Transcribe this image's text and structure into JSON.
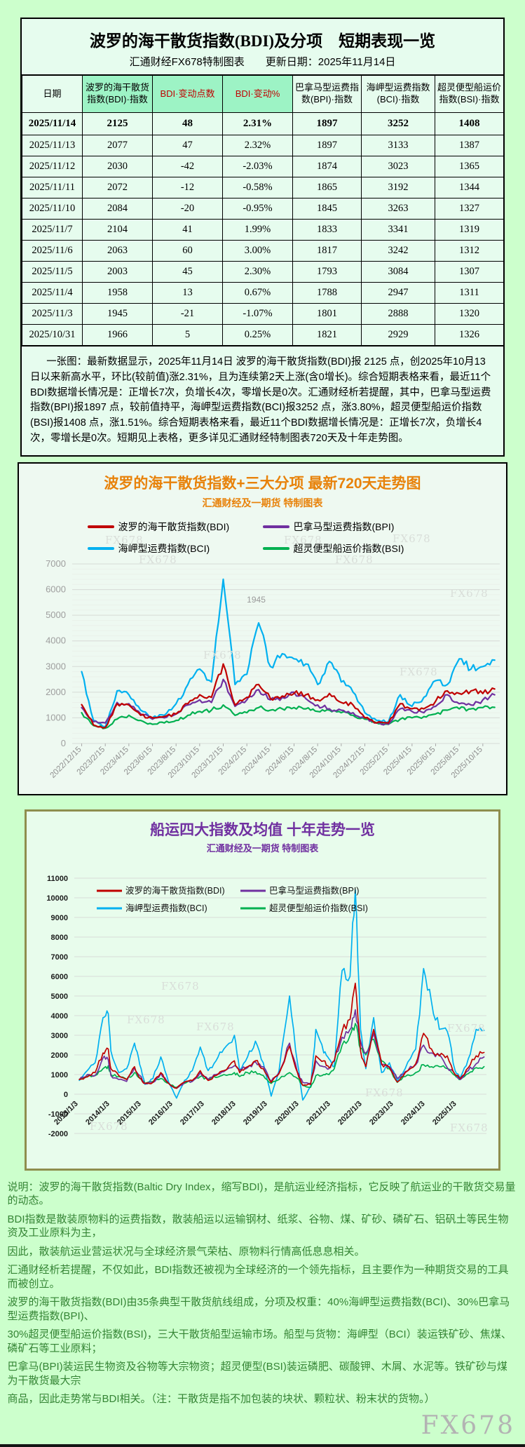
{
  "page": {
    "watermark": "FX678"
  },
  "colors": {
    "bdi_red": "#c00000",
    "bpi_purple": "#7030a0",
    "bci_blue": "#00b0f0",
    "bsi_green": "#00b050",
    "title_orange": "#e8820a",
    "title_purple": "#7030a0",
    "header_mint": "#9df3c5",
    "note_green": "#348434",
    "page_bg": "#ccffcc"
  },
  "table_panel": {
    "title": "波罗的海干散货指数(BDI)及分项　短期表现一览",
    "source": "汇通财经FX678特制图表",
    "updated": "更新日期：2025年11月14日",
    "columns": [
      {
        "label": "日期",
        "hl": false,
        "red": false
      },
      {
        "label": "波罗的海干散货指数(BDI)·指数",
        "hl": true,
        "red": false
      },
      {
        "label": "BDI·变动点数",
        "hl": true,
        "red": true
      },
      {
        "label": "BDI·变动%",
        "hl": true,
        "red": true
      },
      {
        "label": "巴拿马型运费指数(BPI)·指数",
        "hl": false,
        "red": false
      },
      {
        "label": "海岬型运费指数(BCI)·指数",
        "hl": false,
        "red": false
      },
      {
        "label": "超灵便型船运价指数(BSI)·指数",
        "hl": false,
        "red": false
      }
    ],
    "rows": [
      [
        "2025/11/14",
        "2125",
        "48",
        "2.31%",
        "1897",
        "3252",
        "1408"
      ],
      [
        "2025/11/13",
        "2077",
        "47",
        "2.32%",
        "1897",
        "3133",
        "1387"
      ],
      [
        "2025/11/12",
        "2030",
        "-42",
        "-2.03%",
        "1874",
        "3023",
        "1365"
      ],
      [
        "2025/11/11",
        "2072",
        "-12",
        "-0.58%",
        "1865",
        "3192",
        "1344"
      ],
      [
        "2025/11/10",
        "2084",
        "-20",
        "-0.95%",
        "1845",
        "3263",
        "1327"
      ],
      [
        "2025/11/7",
        "2104",
        "41",
        "1.99%",
        "1833",
        "3341",
        "1319"
      ],
      [
        "2025/11/6",
        "2063",
        "60",
        "3.00%",
        "1817",
        "3242",
        "1312"
      ],
      [
        "2025/11/5",
        "2003",
        "45",
        "2.30%",
        "1793",
        "3084",
        "1307"
      ],
      [
        "2025/11/4",
        "1958",
        "13",
        "0.67%",
        "1788",
        "2947",
        "1311"
      ],
      [
        "2025/11/3",
        "1945",
        "-21",
        "-1.07%",
        "1801",
        "2888",
        "1320"
      ],
      [
        "2025/10/31",
        "1966",
        "5",
        "0.25%",
        "1821",
        "2929",
        "1326"
      ]
    ],
    "note": "一张图：最新数据显示，2025年11月14日 波罗的海干散货指数(BDI)报 2125 点，创2025年10月13日以来新高水平，环比(较前值)涨2.31%，且为连续第2天上涨(含0增长)。综合短期表格来看，最近11个BDI数据增长情况是：正增长7次，负增长4次，零增长是0次。汇通财经析若提醒，其中，巴拿马型运费指数(BPI)报1897 点，较前值持平，海岬型运费指数(BCI)报3252 点，涨3.80%，超灵便型船运价指数(BSI)报1408 点，涨1.51%。综合短期表格来看，最近11个BDI数据增长情况是：正增长7次，负增长4次，零增长是0次。短期见上表格，更多详见汇通财经特制图表720天及十年走势图。"
  },
  "chart_data": [
    {
      "type": "line",
      "title": "波罗的海干散货指数+三大分项  最新720天走势图",
      "subtitle": "汇通财经及一期货 特制图表",
      "legend_position": "top",
      "grid": true,
      "xlim": [
        2022.89,
        2025.91
      ],
      "ylim": [
        0,
        7000
      ],
      "ytick_step": 1000,
      "xticks": [
        "2022/12/15",
        "2023/2/15",
        "2023/4/15",
        "2023/6/15",
        "2023/8/15",
        "2023/10/15",
        "2023/12/15",
        "2024/2/15",
        "2024/4/15",
        "2024/6/15",
        "2024/8/15",
        "2024/10/15",
        "2024/12/15",
        "2025/2/15",
        "2025/4/15",
        "2025/6/15",
        "2025/8/15",
        "2025/10/15"
      ],
      "x": [
        "2022/12",
        "2023/1",
        "2023/2",
        "2023/3",
        "2023/4",
        "2023/5",
        "2023/6",
        "2023/7",
        "2023/8",
        "2023/9",
        "2023/10",
        "2023/11",
        "2023/12",
        "2024/1",
        "2024/2",
        "2024/3",
        "2024/4",
        "2024/5",
        "2024/6",
        "2024/7",
        "2024/8",
        "2024/9",
        "2024/10",
        "2024/11",
        "2024/12",
        "2025/1",
        "2025/2",
        "2025/3",
        "2025/4",
        "2025/5",
        "2025/6",
        "2025/7",
        "2025/8",
        "2025/9",
        "2025/10",
        "2025/11"
      ],
      "series": [
        {
          "name": "波罗的海干散货指数(BDI)",
          "short": "bdi",
          "color": "#c00000",
          "values": [
            1515,
            720,
            620,
            1550,
            1500,
            1100,
            1000,
            1050,
            1150,
            1550,
            1900,
            1800,
            3100,
            1500,
            1800,
            2300,
            1750,
            1850,
            1950,
            1900,
            1700,
            1950,
            1600,
            1500,
            1000,
            800,
            800,
            1550,
            1350,
            1350,
            1650,
            2050,
            1950,
            2050,
            1950,
            2125
          ]
        },
        {
          "name": "巴拿马型运费指数(BPI)",
          "short": "bpi",
          "color": "#7030a0",
          "values": [
            1400,
            850,
            800,
            1600,
            1550,
            1150,
            950,
            1000,
            1150,
            1500,
            1700,
            1600,
            2500,
            1450,
            1700,
            2100,
            1700,
            1800,
            2000,
            1750,
            1500,
            1350,
            1300,
            1200,
            1000,
            800,
            750,
            1350,
            1250,
            1200,
            1450,
            1900,
            1550,
            1500,
            1700,
            1897
          ]
        },
        {
          "name": "海岬型运费指数(BCI)",
          "short": "bci",
          "color": "#00b0f0",
          "values": [
            2800,
            900,
            650,
            2050,
            1900,
            1300,
            1000,
            1100,
            1550,
            2300,
            2900,
            2400,
            6400,
            2300,
            2700,
            4700,
            3000,
            3500,
            3300,
            3100,
            2300,
            3200,
            2400,
            2000,
            1200,
            900,
            850,
            1900,
            1450,
            1800,
            2450,
            2300,
            3300,
            2900,
            3000,
            3250
          ]
        },
        {
          "name": "超灵便型船运价指数(BSI)",
          "short": "bsi",
          "color": "#00b050",
          "values": [
            1200,
            700,
            600,
            950,
            1100,
            900,
            750,
            800,
            900,
            1100,
            1250,
            1300,
            1500,
            1100,
            1200,
            1400,
            1300,
            1350,
            1400,
            1350,
            1250,
            1300,
            1200,
            1100,
            950,
            800,
            750,
            950,
            1000,
            1050,
            1150,
            1300,
            1350,
            1350,
            1400,
            1408
          ]
        }
      ],
      "draw_order": [
        2,
        3,
        1,
        0
      ],
      "annotations": [
        {
          "text": "1945",
          "x": "2024/2",
          "y": 5500
        }
      ]
    },
    {
      "type": "line",
      "title": "船运四大指数及均值 十年走势一览",
      "subtitle": "汇通财经及一期货 特制图表",
      "legend_position": "inside-top",
      "grid": true,
      "xlim": [
        2012.88,
        2025.95
      ],
      "ylim": [
        -2000,
        11000
      ],
      "ytick_step": 1000,
      "xticks": [
        "2013/1/3",
        "2014/1/3",
        "2015/1/3",
        "2016/1/3",
        "2017/1/3",
        "2018/1/3",
        "2019/1/3",
        "2020/1/3",
        "2021/1/3",
        "2022/1/3",
        "2023/1/3",
        "2024/1/3",
        "2025/1/3"
      ],
      "x": [
        "2013/1",
        "2013/4",
        "2013/7",
        "2013/10",
        "2013/12",
        "2014/1",
        "2014/4",
        "2014/7",
        "2014/10",
        "2014/12",
        "2015/2",
        "2015/5",
        "2015/8",
        "2015/11",
        "2016/2",
        "2016/5",
        "2016/8",
        "2016/11",
        "2017/2",
        "2017/5",
        "2017/8",
        "2017/12",
        "2018/2",
        "2018/5",
        "2018/8",
        "2018/11",
        "2019/2",
        "2019/5",
        "2019/9",
        "2019/12",
        "2020/2",
        "2020/5",
        "2020/7",
        "2020/10",
        "2020/12",
        "2021/2",
        "2021/5",
        "2021/8",
        "2021/10",
        "2021/12",
        "2022/2",
        "2022/5",
        "2022/8",
        "2022/11",
        "2023/2",
        "2023/5",
        "2023/9",
        "2023/12",
        "2024/3",
        "2024/6",
        "2024/9",
        "2024/12",
        "2025/2",
        "2025/5",
        "2025/8",
        "2025/11"
      ],
      "series": [
        {
          "name": "波罗的海干散货指数(BDI)",
          "short": "bdi",
          "color": "#c00000",
          "values": [
            750,
            880,
            1100,
            2100,
            2300,
            1300,
            950,
            750,
            1400,
            800,
            550,
            600,
            1100,
            550,
            300,
            620,
            700,
            1200,
            700,
            950,
            1200,
            1700,
            1100,
            1400,
            1700,
            1300,
            600,
            1050,
            2450,
            1100,
            450,
            500,
            1950,
            1700,
            1350,
            1700,
            3200,
            3800,
            5650,
            2200,
            1400,
            3300,
            1550,
            1350,
            620,
            1100,
            1550,
            3100,
            2300,
            1950,
            1950,
            1000,
            800,
            1350,
            1950,
            2125
          ]
        },
        {
          "name": "巴拿马型运费指数(BPI)",
          "short": "bpi",
          "color": "#7030a0",
          "values": [
            750,
            1000,
            950,
            1850,
            1750,
            950,
            750,
            650,
            1350,
            950,
            550,
            600,
            1050,
            550,
            300,
            600,
            650,
            1100,
            750,
            1000,
            1150,
            1450,
            1250,
            1350,
            1650,
            1400,
            650,
            1100,
            2600,
            1100,
            600,
            550,
            1700,
            1400,
            1300,
            1700,
            2900,
            3300,
            4300,
            2700,
            2100,
            3100,
            1500,
            1400,
            800,
            1150,
            1500,
            2500,
            2100,
            2000,
            1350,
            1000,
            750,
            1200,
            1550,
            1897
          ]
        },
        {
          "name": "海岬型运费指数(BCI)",
          "short": "bci",
          "color": "#00b0f0",
          "values": [
            700,
            1200,
            1600,
            3900,
            4100,
            2200,
            1100,
            1300,
            2600,
            1500,
            500,
            800,
            1900,
            600,
            -200,
            700,
            1200,
            2400,
            1200,
            1700,
            2300,
            3000,
            1200,
            1900,
            2700,
            1600,
            -100,
            1200,
            5000,
            1600,
            -300,
            400,
            3300,
            2100,
            1800,
            1400,
            6300,
            6000,
            10400,
            3300,
            1300,
            3900,
            1100,
            1600,
            650,
            1300,
            2300,
            6400,
            4700,
            3300,
            3200,
            1200,
            850,
            1800,
            3300,
            3250
          ]
        },
        {
          "name": "超灵便型船运价指数(BSI)",
          "short": "bsi",
          "color": "#00b050",
          "values": [
            750,
            900,
            950,
            1300,
            1450,
            1000,
            900,
            750,
            1100,
            850,
            550,
            650,
            800,
            550,
            350,
            550,
            700,
            900,
            750,
            850,
            1000,
            1100,
            900,
            1100,
            1150,
            950,
            550,
            750,
            1100,
            800,
            450,
            350,
            950,
            1000,
            1000,
            1300,
            2500,
            3000,
            3600,
            2300,
            2000,
            2800,
            1700,
            1300,
            600,
            900,
            1100,
            1500,
            1400,
            1400,
            1300,
            950,
            750,
            1050,
            1350,
            1408
          ]
        }
      ],
      "draw_order": [
        2,
        3,
        1,
        0
      ],
      "annotations": []
    }
  ],
  "explanation": {
    "lines": [
      "说明：波罗的海干散货指数(Baltic Dry Index，缩写BDI)，是航运业经济指标，它反映了航运业的干散货交易量的动态。",
      "BDI指数是散装原物料的运费指数，散装船运以运输钢材、纸浆、谷物、煤、矿砂、磷矿石、铝矾土等民生物资及工业原料为主，",
      "因此，散装航运业营运状况与全球经济景气荣枯、原物料行情高低息息相关。",
      "汇通财经析若提醒，不仅如此，BDI指数还被视为全球经济的一个领先指标，且主要作为一种期货交易的工具而被创立。",
      "波罗的海干散货指数(BDI)由35条典型干散货航线组成，分项及权重：40%海岬型运费指数(BCI)、30%巴拿马型运费指数(BPI)、",
      "30%超灵便型船运价指数(BSI)，三大干散货船型运输市场。船型与货物：海岬型（BCI）装运铁矿砂、焦煤、磷矿石等工业原料；",
      "巴拿马(BPI)装运民生物资及谷物等大宗物资；超灵便型(BSI)装运磷肥、碳酸钾、木屑、水泥等。铁矿砂与煤为干散货最大宗",
      "商品，因此走势常与BDI相关。（注：干散货是指不加包装的块状、颗粒状、粉末状的货物。）"
    ]
  }
}
